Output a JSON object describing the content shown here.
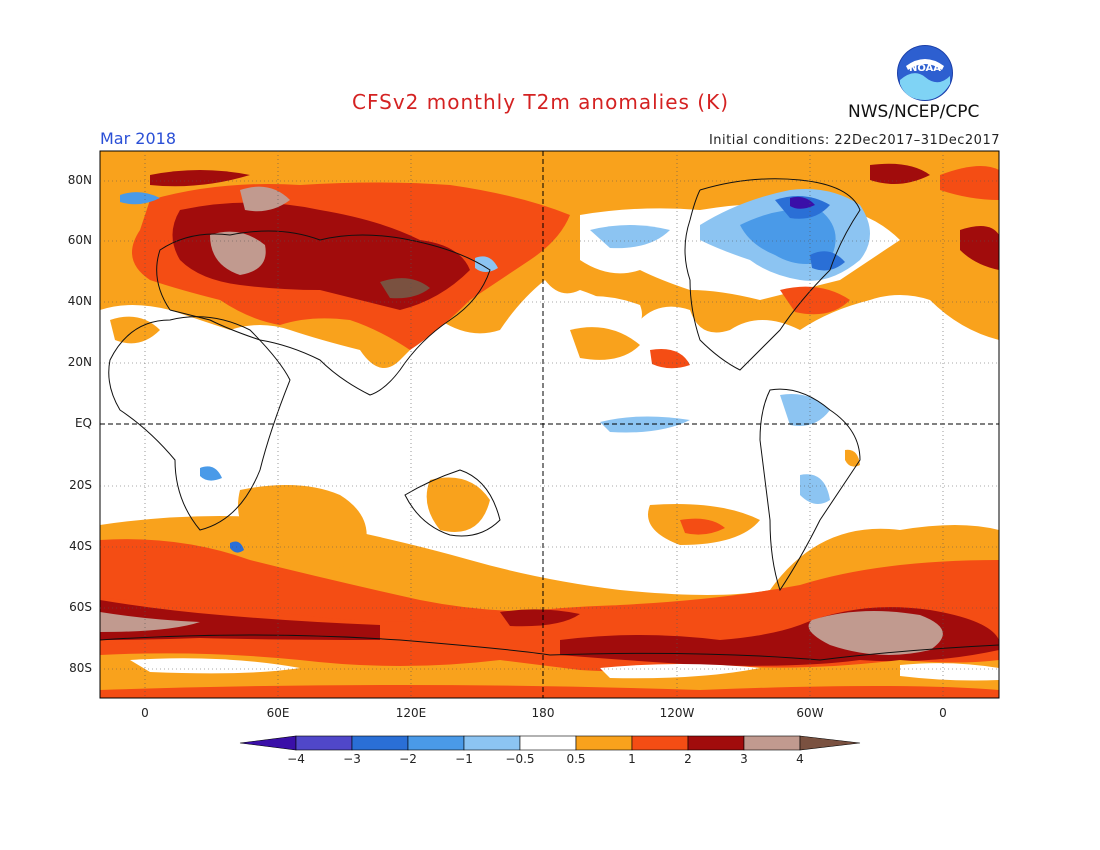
{
  "header": {
    "title": "CFSv2 monthly T2m anomalies (K)",
    "month": "Mar 2018",
    "initial_conditions": "Initial conditions: 22Dec2017–31Dec2017",
    "agency": "NWS/NCEP/CPC",
    "logo_text": "NOAA"
  },
  "map": {
    "lat_labels": [
      "80N",
      "60N",
      "40N",
      "20N",
      "EQ",
      "20S",
      "40S",
      "60S",
      "80S"
    ],
    "lon_labels": [
      "0",
      "60E",
      "120E",
      "180",
      "120W",
      "60W",
      "0"
    ]
  },
  "colorbar": {
    "labels": [
      "−4",
      "−3",
      "−2",
      "−1",
      "−0.5",
      "0.5",
      "1",
      "2",
      "3",
      "4"
    ],
    "colors": [
      "#3a0fa8",
      "#5047c9",
      "#2a6fd6",
      "#4a9ae8",
      "#8cc4f2",
      "#ffffff",
      "#f9a21c",
      "#f44d14",
      "#a10c0c",
      "#c19a8f",
      "#7a5140"
    ]
  },
  "colors": {
    "title": "#d42222",
    "month": "#2a4fd6"
  }
}
